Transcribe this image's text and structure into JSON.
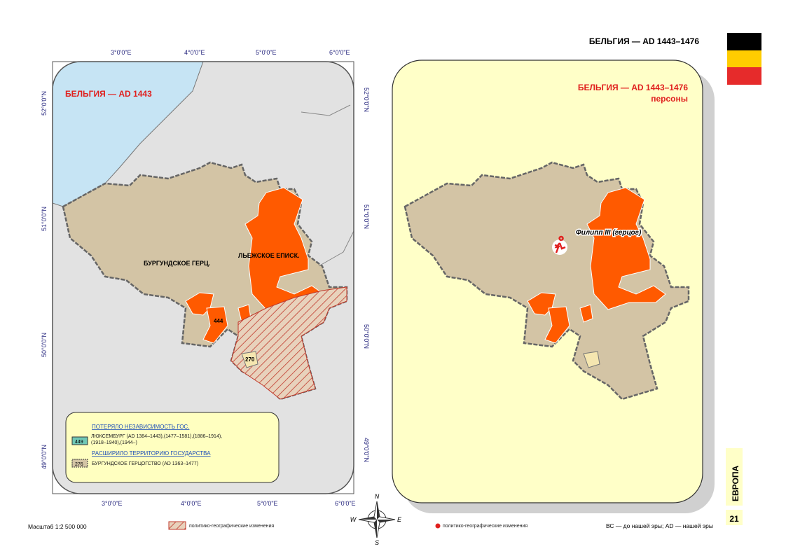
{
  "header": {
    "title": "БЕЛЬГИЯ — AD 1443–1476"
  },
  "left_map": {
    "title": "БЕЛЬГИЯ — AD 1443",
    "lon_labels": [
      "3°0'0\"E",
      "4°0'0\"E",
      "5°0'0\"E",
      "6°0'0\"E"
    ],
    "lat_labels": [
      "52°0'0\"N",
      "51°0'0\"N",
      "50°0'0\"N",
      "49°0'0\"N"
    ],
    "regions": [
      "БУРГУНДСКОЕ ГЕРЦ.",
      "ЛЬЕЖСКОЕ ЕПИСК."
    ],
    "codes": [
      "444",
      "270"
    ],
    "legend": [
      {
        "heading": "ПОТЕРЯЛО НЕЗАВИСИМОСТЬ ГОС.",
        "code": "449",
        "text": "ЛЮКСЕМБУРГ (AD 1384–1443),(1477–1581),(1886–1914),(1918–1940),(1944–)"
      },
      {
        "heading": "РАСШИРИЛО ТЕРРИТОРИЮ ГОСУДАРСТВА",
        "code": "276",
        "text": "БУРГУНДСКОЕ ГЕРЦОГСТВО (AD 1363–1477)"
      }
    ]
  },
  "right_map": {
    "title": "БЕЛЬГИЯ — AD 1443–1476",
    "subtitle": "персоны",
    "person": "Филипп III (герцог)"
  },
  "compass": [
    "N",
    "W",
    "E",
    "S"
  ],
  "footer": {
    "scale": "Масштаб 1:2 500 000",
    "left_legend": "политико-географические изменения",
    "right_legend": "политико-географические изменения",
    "era": "ВС — до нашей эры; AD — нашей эры",
    "section": "ЕВРОПА",
    "page": "21"
  }
}
